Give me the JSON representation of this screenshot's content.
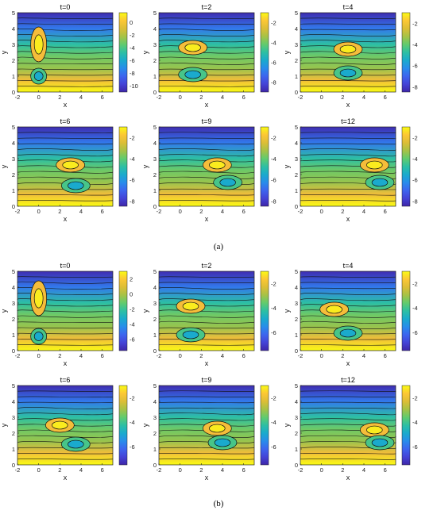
{
  "figure": {
    "groups": [
      {
        "caption": "(a)"
      },
      {
        "caption": "(b)"
      }
    ]
  },
  "chart_data": [
    {
      "group": "a",
      "type": "heatmap",
      "title": "t=0",
      "xlabel": "x",
      "ylabel": "y",
      "xlim": [
        -2,
        7
      ],
      "ylim": [
        0,
        5
      ],
      "xticks": [
        "-2",
        "0",
        "2",
        "4",
        "6"
      ],
      "yticks": [
        "0",
        "1",
        "2",
        "3",
        "4",
        "5"
      ],
      "colorbar": {
        "ticks": [
          "0",
          "-2",
          "-4",
          "-6",
          "-8",
          "-10"
        ],
        "range": [
          -11,
          1.5
        ]
      },
      "features": [
        {
          "kind": "max",
          "x": 0,
          "y": 3.0
        },
        {
          "kind": "min",
          "x": 0,
          "y": 1.0
        }
      ]
    },
    {
      "group": "a",
      "type": "heatmap",
      "title": "t=2",
      "xlabel": "x",
      "ylabel": "y",
      "xlim": [
        -2,
        7
      ],
      "ylim": [
        0,
        5
      ],
      "xticks": [
        "-2",
        "0",
        "2",
        "4",
        "6"
      ],
      "yticks": [
        "0",
        "1",
        "2",
        "3",
        "4",
        "5"
      ],
      "colorbar": {
        "ticks": [
          "-2",
          "-4",
          "-6",
          "-8"
        ],
        "range": [
          -9,
          -1
        ]
      },
      "features": [
        {
          "kind": "max",
          "x": 1.2,
          "y": 2.8
        },
        {
          "kind": "min",
          "x": 1.2,
          "y": 1.1
        }
      ]
    },
    {
      "group": "a",
      "type": "heatmap",
      "title": "t=4",
      "xlabel": "x",
      "ylabel": "y",
      "xlim": [
        -2,
        7
      ],
      "ylim": [
        0,
        5
      ],
      "xticks": [
        "-2",
        "0",
        "2",
        "4",
        "6"
      ],
      "yticks": [
        "0",
        "1",
        "2",
        "3",
        "4",
        "5"
      ],
      "colorbar": {
        "ticks": [
          "-2",
          "-4",
          "-6",
          "-8"
        ],
        "range": [
          -8.5,
          -1
        ]
      },
      "features": [
        {
          "kind": "max",
          "x": 2.5,
          "y": 2.7
        },
        {
          "kind": "min",
          "x": 2.5,
          "y": 1.2
        }
      ]
    },
    {
      "group": "a",
      "type": "heatmap",
      "title": "t=6",
      "xlabel": "x",
      "ylabel": "y",
      "xlim": [
        -2,
        7
      ],
      "ylim": [
        0,
        5
      ],
      "xticks": [
        "-2",
        "0",
        "2",
        "4",
        "6"
      ],
      "yticks": [
        "0",
        "1",
        "2",
        "3",
        "4",
        "5"
      ],
      "colorbar": {
        "ticks": [
          "-2",
          "-4",
          "-6",
          "-8"
        ],
        "range": [
          -8.5,
          -1
        ]
      },
      "features": [
        {
          "kind": "max",
          "x": 3.0,
          "y": 2.6
        },
        {
          "kind": "min",
          "x": 3.5,
          "y": 1.3
        }
      ]
    },
    {
      "group": "a",
      "type": "heatmap",
      "title": "t=9",
      "xlabel": "x",
      "ylabel": "y",
      "xlim": [
        -2,
        7
      ],
      "ylim": [
        0,
        5
      ],
      "xticks": [
        "-2",
        "0",
        "2",
        "4",
        "6"
      ],
      "yticks": [
        "0",
        "1",
        "2",
        "3",
        "4",
        "5"
      ],
      "colorbar": {
        "ticks": [
          "-2",
          "-4",
          "-6",
          "-8"
        ],
        "range": [
          -8.5,
          -1
        ]
      },
      "features": [
        {
          "kind": "max",
          "x": 3.5,
          "y": 2.6
        },
        {
          "kind": "min",
          "x": 4.5,
          "y": 1.5
        }
      ]
    },
    {
      "group": "a",
      "type": "heatmap",
      "title": "t=12",
      "xlabel": "x",
      "ylabel": "y",
      "xlim": [
        -2,
        7
      ],
      "ylim": [
        0,
        5
      ],
      "xticks": [
        "-2",
        "0",
        "2",
        "4",
        "6"
      ],
      "yticks": [
        "0",
        "1",
        "2",
        "3",
        "4",
        "5"
      ],
      "colorbar": {
        "ticks": [
          "-2",
          "-4",
          "-6",
          "-8"
        ],
        "range": [
          -8.5,
          -1
        ]
      },
      "features": [
        {
          "kind": "max",
          "x": 5.0,
          "y": 2.6
        },
        {
          "kind": "min",
          "x": 5.5,
          "y": 1.5
        }
      ]
    },
    {
      "group": "b",
      "type": "heatmap",
      "title": "t=0",
      "xlabel": "x",
      "ylabel": "y",
      "xlim": [
        -2,
        7
      ],
      "ylim": [
        0,
        5
      ],
      "xticks": [
        "-2",
        "0",
        "2",
        "4",
        "6"
      ],
      "yticks": [
        "0",
        "1",
        "2",
        "3",
        "4",
        "5"
      ],
      "colorbar": {
        "ticks": [
          "2",
          "0",
          "-2",
          "-4",
          "-6"
        ],
        "range": [
          -7.5,
          3
        ]
      },
      "features": [
        {
          "kind": "max",
          "x": 0,
          "y": 3.3
        },
        {
          "kind": "min",
          "x": 0,
          "y": 0.9
        }
      ]
    },
    {
      "group": "b",
      "type": "heatmap",
      "title": "t=2",
      "xlabel": "x",
      "ylabel": "y",
      "xlim": [
        -2,
        7
      ],
      "ylim": [
        0,
        5
      ],
      "xticks": [
        "-2",
        "0",
        "2",
        "4",
        "6"
      ],
      "yticks": [
        "0",
        "1",
        "2",
        "3",
        "4",
        "5"
      ],
      "colorbar": {
        "ticks": [
          "-2",
          "-4",
          "-6"
        ],
        "range": [
          -7.5,
          -1
        ]
      },
      "features": [
        {
          "kind": "max",
          "x": 1.0,
          "y": 2.8
        },
        {
          "kind": "min",
          "x": 1.0,
          "y": 1.0
        }
      ]
    },
    {
      "group": "b",
      "type": "heatmap",
      "title": "t=4",
      "xlabel": "x",
      "ylabel": "y",
      "xlim": [
        -2,
        7
      ],
      "ylim": [
        0,
        5
      ],
      "xticks": [
        "-2",
        "0",
        "2",
        "4",
        "6"
      ],
      "yticks": [
        "0",
        "1",
        "2",
        "3",
        "4",
        "5"
      ],
      "colorbar": {
        "ticks": [
          "-2",
          "-4",
          "-6"
        ],
        "range": [
          -7.5,
          -1
        ]
      },
      "features": [
        {
          "kind": "max",
          "x": 1.2,
          "y": 2.6
        },
        {
          "kind": "min",
          "x": 2.5,
          "y": 1.1
        }
      ]
    },
    {
      "group": "b",
      "type": "heatmap",
      "title": "t=6",
      "xlabel": "x",
      "ylabel": "y",
      "xlim": [
        -2,
        7
      ],
      "ylim": [
        0,
        5
      ],
      "xticks": [
        "-2",
        "0",
        "2",
        "4",
        "6"
      ],
      "yticks": [
        "0",
        "1",
        "2",
        "3",
        "4",
        "5"
      ],
      "colorbar": {
        "ticks": [
          "-2",
          "-4",
          "-6"
        ],
        "range": [
          -7.5,
          -1
        ]
      },
      "features": [
        {
          "kind": "max",
          "x": 2.0,
          "y": 2.5
        },
        {
          "kind": "min",
          "x": 3.5,
          "y": 1.3
        }
      ]
    },
    {
      "group": "b",
      "type": "heatmap",
      "title": "t=9",
      "xlabel": "x",
      "ylabel": "y",
      "xlim": [
        -2,
        7
      ],
      "ylim": [
        0,
        5
      ],
      "xticks": [
        "-2",
        "0",
        "2",
        "4",
        "6"
      ],
      "yticks": [
        "0",
        "1",
        "2",
        "3",
        "4",
        "5"
      ],
      "colorbar": {
        "ticks": [
          "-2",
          "-4",
          "-6"
        ],
        "range": [
          -7.5,
          -1
        ]
      },
      "features": [
        {
          "kind": "max",
          "x": 3.5,
          "y": 2.3
        },
        {
          "kind": "min",
          "x": 4.0,
          "y": 1.4
        }
      ]
    },
    {
      "group": "b",
      "type": "heatmap",
      "title": "t=12",
      "xlabel": "x",
      "ylabel": "y",
      "xlim": [
        -2,
        7
      ],
      "ylim": [
        0,
        5
      ],
      "xticks": [
        "-2",
        "0",
        "2",
        "4",
        "6"
      ],
      "yticks": [
        "0",
        "1",
        "2",
        "3",
        "4",
        "5"
      ],
      "colorbar": {
        "ticks": [
          "-2",
          "-4",
          "-6"
        ],
        "range": [
          -7.5,
          -1
        ]
      },
      "features": [
        {
          "kind": "max",
          "x": 5.0,
          "y": 2.2
        },
        {
          "kind": "min",
          "x": 5.5,
          "y": 1.4
        }
      ]
    }
  ]
}
